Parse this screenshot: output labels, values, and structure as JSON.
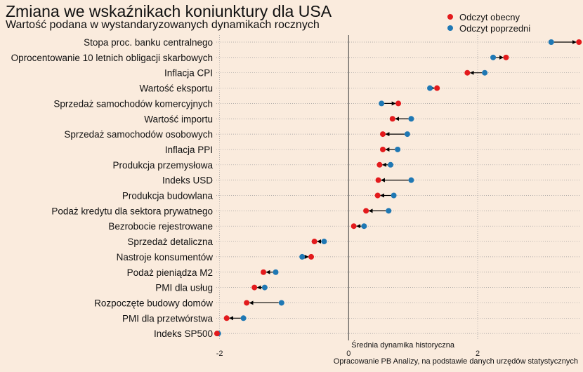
{
  "title": "Zmiana we wskaźnikach koniunktury dla USA",
  "subtitle": "Wartość podana w wystandaryzowanych dynamikach rocznych",
  "caption": "Opracowanie  PB Analizy, na podstawie danych urzędów statystycznych",
  "colors": {
    "background": "#faebdd",
    "current": "#e31a1c",
    "previous": "#1f78b4",
    "arrow": "#000000",
    "grid": "#9a9a9a"
  },
  "chart_data": {
    "type": "dumbbell",
    "xlim": [
      -2.05,
      3.6
    ],
    "xticks": [
      -2,
      0,
      2
    ],
    "xtick_labels": [
      "-2",
      "0",
      "2"
    ],
    "reference_line": {
      "x": 0,
      "label": "Średnia dynamika historyczna"
    },
    "grid": "dotted",
    "legend_position": "top-right",
    "series": [
      {
        "key": "current",
        "name": "Odczyt obecny"
      },
      {
        "key": "previous",
        "name": "Odczyt poprzedni"
      }
    ],
    "categories": [
      "Stopa proc. banku centralnego",
      "Oprocentowanie 10 letnich obligacji skarbowych",
      "Inflacja CPI",
      "Wartość eksportu",
      "Sprzedaż samochodów komercyjnych",
      "Wartość importu",
      "Sprzedaż samochodów osobowych",
      "Inflacja PPI",
      "Produkcja przemysłowa",
      "Indeks USD",
      "Produkcja budowlana",
      "Podaż kredytu dla sektora prywatnego",
      "Bezrobocie rejestrowane",
      "Sprzedaż detaliczna",
      "Nastroje konsumentów",
      "Podaż pieniądza M2",
      "PMI dla usług",
      "Rozpoczęte budowy domów",
      "PMI dla przetwórstwa",
      "Indeks SP500"
    ],
    "current": [
      3.57,
      2.44,
      1.84,
      1.37,
      0.77,
      0.68,
      0.53,
      0.53,
      0.48,
      0.46,
      0.45,
      0.27,
      0.08,
      -0.53,
      -0.58,
      -1.32,
      -1.46,
      -1.58,
      -1.89,
      -2.04
    ],
    "previous": [
      3.14,
      2.24,
      2.11,
      1.26,
      0.51,
      0.97,
      0.91,
      0.76,
      0.65,
      0.97,
      0.7,
      0.62,
      0.24,
      -0.38,
      -0.72,
      -1.13,
      -1.3,
      -1.04,
      -1.63,
      -2.02
    ]
  }
}
